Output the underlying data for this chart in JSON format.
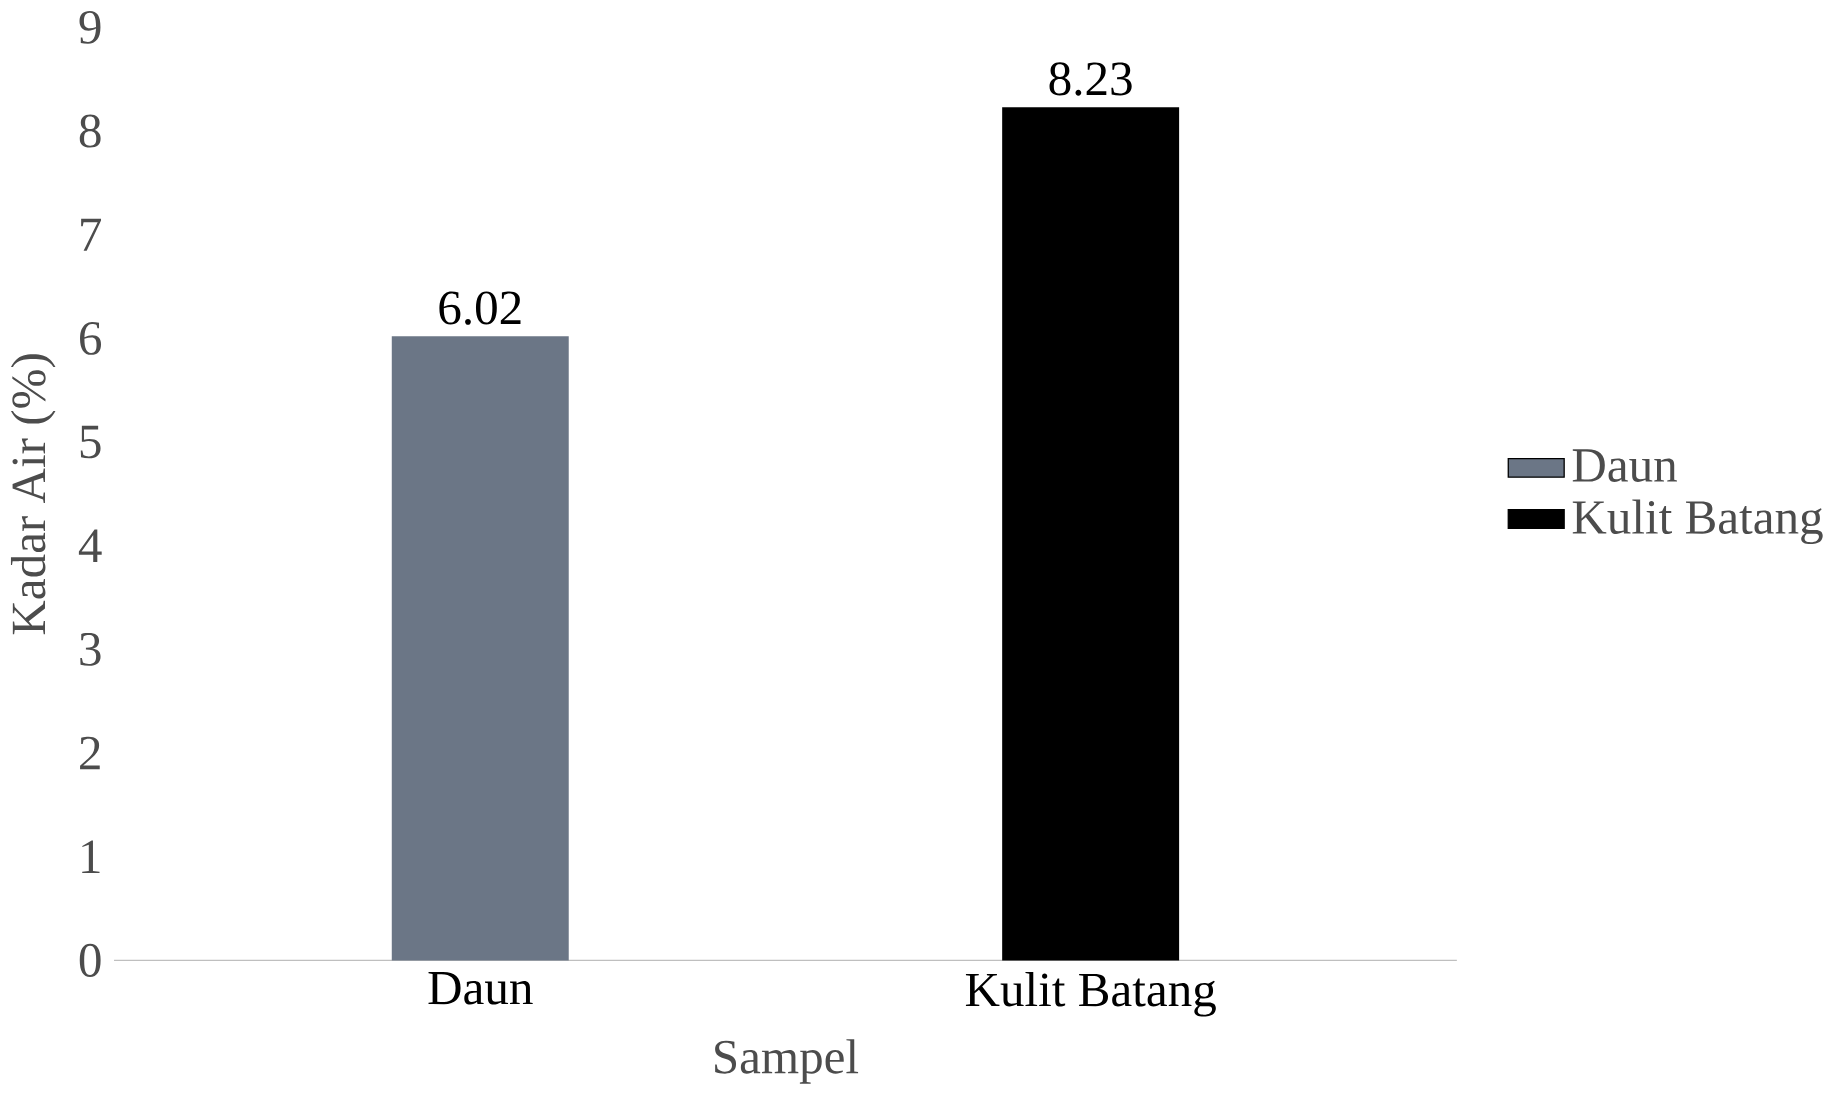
{
  "chart_data": {
    "type": "bar",
    "xlabel": "Sampel",
    "ylabel": "Kadar Air (%)",
    "categories": [
      "Daun",
      "Kulit Batang"
    ],
    "series": [
      {
        "name": "Daun",
        "color": "#6b7686",
        "values": [
          6.02,
          null
        ]
      },
      {
        "name": "Kulit Batang",
        "color": "#000000",
        "values": [
          null,
          8.23
        ]
      }
    ],
    "ylim": [
      0,
      9
    ],
    "yticks": [
      0,
      1,
      2,
      3,
      4,
      5,
      6,
      7,
      8,
      9
    ],
    "data_labels": true,
    "legend": "right",
    "grid": false
  }
}
